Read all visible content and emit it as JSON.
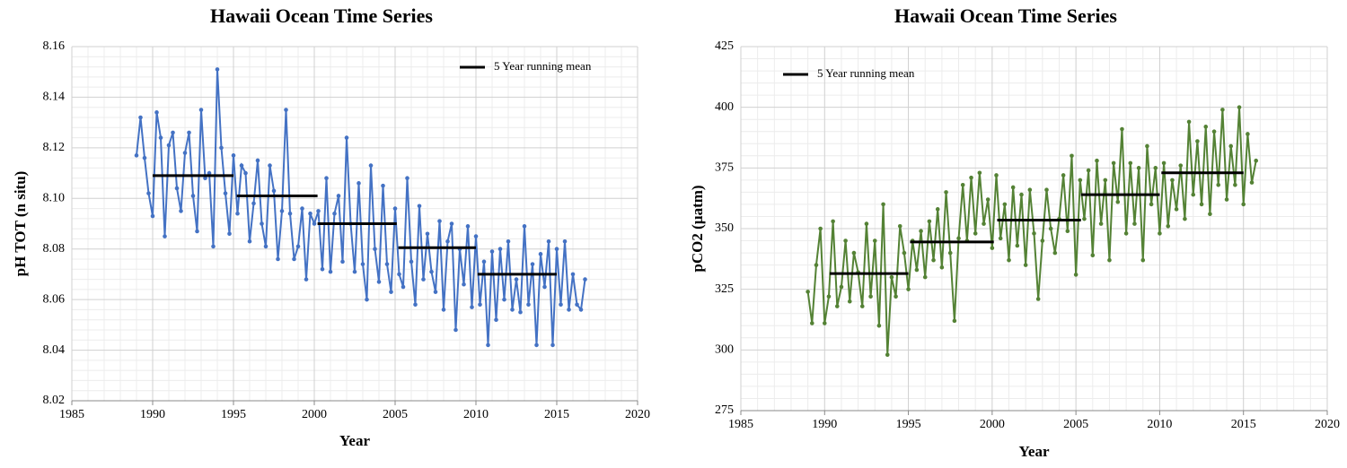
{
  "chart_data": [
    {
      "type": "line",
      "title": "Hawaii Ocean Time Series",
      "x_label": "Year",
      "y_label": "pH TOT (n situ)",
      "color": "#4472c4",
      "grid": true,
      "legend": "upper right",
      "xlim": [
        1985,
        2020
      ],
      "xticks": [
        1985,
        1990,
        1995,
        2000,
        2005,
        2010,
        2015,
        2020
      ],
      "ylim": [
        8.02,
        8.16
      ],
      "yticks": [
        8.02,
        8.04,
        8.06,
        8.08,
        {
          "value": 8.1,
          "label": "8.10"
        },
        8.12,
        8.14,
        8.16
      ],
      "x": [
        1989,
        1989.25,
        1989.5,
        1989.75,
        1990,
        1990.25,
        1990.5,
        1990.75,
        1991,
        1991.25,
        1991.5,
        1991.75,
        1992,
        1992.25,
        1992.5,
        1992.75,
        1993,
        1993.25,
        1993.5,
        1993.75,
        1994,
        1994.25,
        1994.5,
        1994.75,
        1995,
        1995.25,
        1995.5,
        1995.75,
        1996,
        1996.25,
        1996.5,
        1996.75,
        1997,
        1997.25,
        1997.5,
        1997.75,
        1998,
        1998.25,
        1998.5,
        1998.75,
        1999,
        1999.25,
        1999.5,
        1999.75,
        2000,
        2000.25,
        2000.5,
        2000.75,
        2001,
        2001.25,
        2001.5,
        2001.75,
        2002,
        2002.25,
        2002.5,
        2002.75,
        2003,
        2003.25,
        2003.5,
        2003.75,
        2004,
        2004.25,
        2004.5,
        2004.75,
        2005,
        2005.25,
        2005.5,
        2005.75,
        2006,
        2006.25,
        2006.5,
        2006.75,
        2007,
        2007.25,
        2007.5,
        2007.75,
        2008,
        2008.25,
        2008.5,
        2008.75,
        2009,
        2009.25,
        2009.5,
        2009.75,
        2010,
        2010.25,
        2010.5,
        2010.75,
        2011,
        2011.25,
        2011.5,
        2011.75,
        2012,
        2012.25,
        2012.5,
        2012.75,
        2013,
        2013.25,
        2013.5,
        2013.75,
        2014,
        2014.25,
        2014.5,
        2014.75,
        2015,
        2015.25,
        2015.5,
        2015.75,
        2016,
        2016.25,
        2016.5,
        2016.75
      ],
      "values": [
        8.117,
        8.132,
        8.116,
        8.102,
        8.093,
        8.134,
        8.124,
        8.085,
        8.121,
        8.126,
        8.104,
        8.095,
        8.118,
        8.126,
        8.101,
        8.087,
        8.135,
        8.108,
        8.11,
        8.081,
        8.151,
        8.12,
        8.102,
        8.086,
        8.117,
        8.094,
        8.113,
        8.11,
        8.083,
        8.098,
        8.115,
        8.09,
        8.081,
        8.113,
        8.103,
        8.076,
        8.095,
        8.135,
        8.094,
        8.076,
        8.081,
        8.096,
        8.068,
        8.094,
        8.09,
        8.095,
        8.072,
        8.108,
        8.071,
        8.094,
        8.101,
        8.075,
        8.124,
        8.09,
        8.071,
        8.106,
        8.074,
        8.06,
        8.113,
        8.08,
        8.067,
        8.105,
        8.074,
        8.063,
        8.096,
        8.07,
        8.065,
        8.108,
        8.075,
        8.058,
        8.097,
        8.068,
        8.086,
        8.071,
        8.063,
        8.091,
        8.056,
        8.083,
        8.09,
        8.048,
        8.08,
        8.066,
        8.089,
        8.057,
        8.085,
        8.058,
        8.075,
        8.042,
        8.079,
        8.052,
        8.08,
        8.06,
        8.083,
        8.056,
        8.068,
        8.055,
        8.089,
        8.058,
        8.074,
        8.042,
        8.078,
        8.065,
        8.083,
        8.042,
        8.08,
        8.058,
        8.083,
        8.056,
        8.07,
        8.058,
        8.056,
        8.068
      ],
      "running_mean": {
        "name": "5 Year running mean",
        "color": "#000000",
        "segments": [
          {
            "x": [
              1990,
              1995
            ],
            "value": 8.109
          },
          {
            "x": [
              1995.2,
              2000.2
            ],
            "value": 8.101
          },
          {
            "x": [
              2000.2,
              2005.1
            ],
            "value": 8.09
          },
          {
            "x": [
              2005.2,
              2010
            ],
            "value": 8.0805
          },
          {
            "x": [
              2010.1,
              2015
            ],
            "value": 8.07
          }
        ]
      }
    },
    {
      "type": "line",
      "title": "Hawaii Ocean Time Series",
      "x_label": "Year",
      "y_label": "pCO2 (µatm)",
      "color": "#548235",
      "grid": true,
      "legend": "upper left",
      "xlim": [
        1985,
        2020
      ],
      "xticks": [
        1985,
        1990,
        1995,
        2000,
        2005,
        2010,
        2015,
        2020
      ],
      "ylim": [
        275,
        425
      ],
      "yticks": [
        275,
        300,
        325,
        350,
        375,
        400,
        425
      ],
      "x": [
        1989,
        1989.25,
        1989.5,
        1989.75,
        1990,
        1990.25,
        1990.5,
        1990.75,
        1991,
        1991.25,
        1991.5,
        1991.75,
        1992,
        1992.25,
        1992.5,
        1992.75,
        1993,
        1993.25,
        1993.5,
        1993.75,
        1994,
        1994.25,
        1994.5,
        1994.75,
        1995,
        1995.25,
        1995.5,
        1995.75,
        1996,
        1996.25,
        1996.5,
        1996.75,
        1997,
        1997.25,
        1997.5,
        1997.75,
        1998,
        1998.25,
        1998.5,
        1998.75,
        1999,
        1999.25,
        1999.5,
        1999.75,
        2000,
        2000.25,
        2000.5,
        2000.75,
        2001,
        2001.25,
        2001.5,
        2001.75,
        2002,
        2002.25,
        2002.5,
        2002.75,
        2003,
        2003.25,
        2003.5,
        2003.75,
        2004,
        2004.25,
        2004.5,
        2004.75,
        2005,
        2005.25,
        2005.5,
        2005.75,
        2006,
        2006.25,
        2006.5,
        2006.75,
        2007,
        2007.25,
        2007.5,
        2007.75,
        2008,
        2008.25,
        2008.5,
        2008.75,
        2009,
        2009.25,
        2009.5,
        2009.75,
        2010,
        2010.25,
        2010.5,
        2010.75,
        2011,
        2011.25,
        2011.5,
        2011.75,
        2012,
        2012.25,
        2012.5,
        2012.75,
        2013,
        2013.25,
        2013.5,
        2013.75,
        2014,
        2014.25,
        2014.5,
        2014.75,
        2015,
        2015.25,
        2015.5,
        2015.75
      ],
      "values": [
        324,
        311,
        335,
        350,
        311,
        322,
        353,
        318,
        326,
        345,
        320,
        340,
        332,
        318,
        352,
        322,
        345,
        310,
        360,
        298,
        330,
        322,
        351,
        340,
        325,
        345,
        333,
        349,
        330,
        353,
        337,
        358,
        334,
        365,
        340,
        312,
        346,
        368,
        345,
        371,
        348,
        373,
        352,
        362,
        342,
        372,
        346,
        360,
        337,
        367,
        343,
        364,
        335,
        366,
        348,
        321,
        345,
        366,
        350,
        340,
        354,
        372,
        349,
        380,
        331,
        370,
        354,
        374,
        339,
        378,
        352,
        370,
        337,
        377,
        361,
        391,
        348,
        377,
        352,
        375,
        337,
        384,
        360,
        375,
        348,
        377,
        351,
        370,
        358,
        376,
        354,
        394,
        364,
        386,
        360,
        392,
        356,
        390,
        368,
        399,
        362,
        384,
        368,
        400,
        360,
        389,
        369,
        378
      ],
      "running_mean": {
        "name": "5 Year running mean",
        "color": "#000000",
        "segments": [
          {
            "x": [
              1990.3,
              1995
            ],
            "value": 331.5
          },
          {
            "x": [
              1995.1,
              2000.1
            ],
            "value": 344.5
          },
          {
            "x": [
              2000.3,
              2005.3
            ],
            "value": 353.5
          },
          {
            "x": [
              2005.3,
              2010
            ],
            "value": 364
          },
          {
            "x": [
              2010.1,
              2015
            ],
            "value": 373
          }
        ]
      }
    }
  ]
}
